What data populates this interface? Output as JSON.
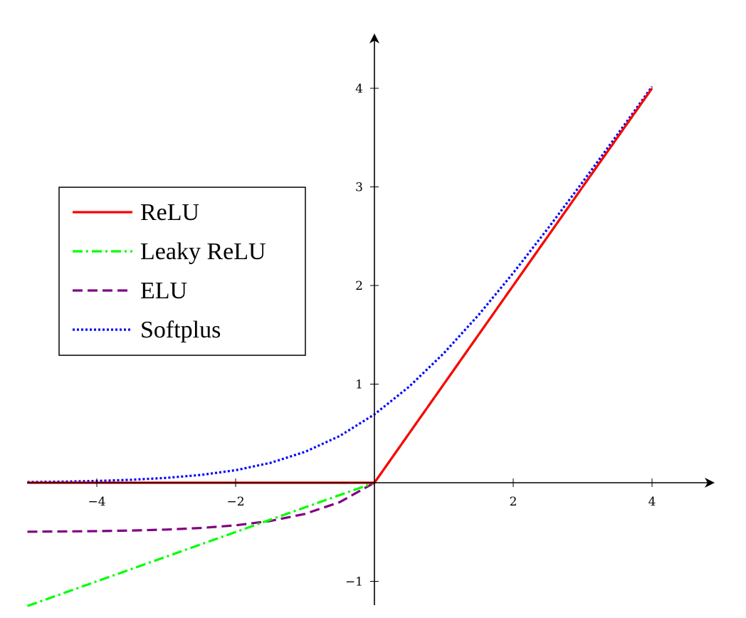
{
  "chart_data": {
    "type": "line",
    "title": "",
    "xlabel": "",
    "ylabel": "",
    "xlim": [
      -5,
      4.85
    ],
    "ylim": [
      -1.25,
      4.55
    ],
    "x_ticks": [
      -4,
      -2,
      2,
      4
    ],
    "x_tick_labels": [
      "−4",
      "−2",
      "2",
      "4"
    ],
    "y_ticks": [
      -1,
      1,
      2,
      3,
      4
    ],
    "y_tick_labels": [
      "−1",
      "1",
      "2",
      "3",
      "4"
    ],
    "grid": false,
    "legend_placement": "center-left",
    "x": [
      -5,
      -4.5,
      -4,
      -3.5,
      -3,
      -2.5,
      -2,
      -1.5,
      -1,
      -0.5,
      0,
      0.5,
      1,
      1.5,
      2,
      2.5,
      3,
      3.5,
      4
    ],
    "series": [
      {
        "name": "ReLU",
        "color": "#ff0000",
        "style": "solid",
        "values": [
          0,
          0,
          0,
          0,
          0,
          0,
          0,
          0,
          0,
          0,
          0,
          0.5,
          1,
          1.5,
          2,
          2.5,
          3,
          3.5,
          4
        ]
      },
      {
        "name": "Leaky ReLU",
        "color": "#00ff00",
        "style": "dash-dot",
        "values": [
          -1.25,
          -1.125,
          -1,
          -0.875,
          -0.75,
          -0.625,
          -0.5,
          -0.375,
          -0.25,
          -0.125,
          0,
          0.5,
          1,
          1.5,
          2,
          2.5,
          3,
          3.5,
          4
        ]
      },
      {
        "name": "ELU",
        "color": "#800080",
        "style": "dashed",
        "values": [
          -0.497,
          -0.494,
          -0.491,
          -0.485,
          -0.475,
          -0.459,
          -0.432,
          -0.388,
          -0.316,
          -0.197,
          0,
          0.5,
          1,
          1.5,
          2,
          2.5,
          3,
          3.5,
          4
        ]
      },
      {
        "name": "Softplus",
        "color": "#0000ff",
        "style": "dotted",
        "values": [
          0.0067,
          0.011,
          0.018,
          0.03,
          0.049,
          0.079,
          0.127,
          0.201,
          0.313,
          0.474,
          0.693,
          0.974,
          1.313,
          1.701,
          2.127,
          2.579,
          3.049,
          3.53,
          4.018
        ]
      }
    ]
  }
}
